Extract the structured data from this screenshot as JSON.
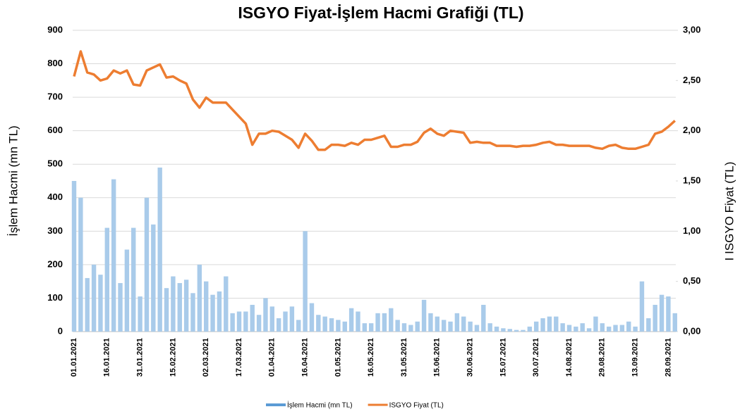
{
  "chart_data": {
    "type": "bar_line",
    "title": "ISGYO Fiyat-İşlem Hacmi Grafiği (TL)",
    "y_label": "İşlem Hacmi (mn TL)",
    "y2_label": "I ISGYO Fiyat (TL)",
    "categories": [
      "01.01.2021",
      null,
      null,
      null,
      null,
      "16.01.2021",
      null,
      null,
      null,
      null,
      "31.01.2021",
      null,
      null,
      null,
      null,
      "15.02.2021",
      null,
      null,
      null,
      null,
      "02.03.2021",
      null,
      null,
      null,
      null,
      "17.03.2021",
      null,
      null,
      null,
      null,
      "01.04.2021",
      null,
      null,
      null,
      null,
      "16.04.2021",
      null,
      null,
      null,
      null,
      "01.05.2021",
      null,
      null,
      null,
      null,
      "16.05.2021",
      null,
      null,
      null,
      null,
      "31.05.2021",
      null,
      null,
      null,
      null,
      "15.06.2021",
      null,
      null,
      null,
      null,
      "30.06.2021",
      null,
      null,
      null,
      null,
      "15.07.2021",
      null,
      null,
      null,
      null,
      "30.07.2021",
      null,
      null,
      null,
      null,
      "14.08.2021",
      null,
      null,
      null,
      null,
      "29.08.2021",
      null,
      null,
      null,
      null,
      "13.09.2021",
      null,
      null,
      null,
      null,
      "28.09.2021",
      null
    ],
    "series": [
      {
        "name": "İşlem Hacmi (mn TL)",
        "kind": "bar",
        "color": "#a9cbea",
        "legend_color": "#5b9bd5",
        "values": [
          450,
          400,
          160,
          200,
          170,
          310,
          455,
          145,
          245,
          310,
          105,
          400,
          320,
          490,
          130,
          165,
          145,
          155,
          115,
          200,
          150,
          110,
          120,
          165,
          55,
          60,
          60,
          80,
          50,
          100,
          75,
          40,
          60,
          75,
          35,
          300,
          85,
          50,
          45,
          40,
          35,
          30,
          70,
          60,
          25,
          25,
          55,
          55,
          70,
          35,
          25,
          20,
          30,
          95,
          55,
          45,
          35,
          30,
          55,
          45,
          30,
          20,
          80,
          25,
          15,
          10,
          8,
          5,
          5,
          15,
          30,
          40,
          45,
          45,
          25,
          20,
          15,
          25,
          10,
          45,
          25,
          15,
          20,
          20,
          30,
          15,
          150,
          40,
          80,
          110,
          105,
          55
        ]
      },
      {
        "name": "ISGYO Fiyat (TL)",
        "kind": "line",
        "axis": "y2",
        "color": "#ed7d31",
        "values": [
          2.54,
          2.79,
          2.58,
          2.56,
          2.5,
          2.52,
          2.6,
          2.57,
          2.6,
          2.46,
          2.45,
          2.6,
          2.63,
          2.66,
          2.53,
          2.54,
          2.5,
          2.47,
          2.31,
          2.23,
          2.33,
          2.28,
          2.28,
          2.28,
          2.21,
          2.14,
          2.07,
          1.86,
          1.97,
          1.97,
          2.0,
          1.99,
          1.95,
          1.91,
          1.83,
          1.97,
          1.9,
          1.81,
          1.81,
          1.86,
          1.86,
          1.85,
          1.88,
          1.86,
          1.91,
          1.91,
          1.93,
          1.95,
          1.84,
          1.84,
          1.86,
          1.86,
          1.89,
          1.98,
          2.02,
          1.97,
          1.95,
          2.0,
          1.99,
          1.98,
          1.88,
          1.89,
          1.88,
          1.88,
          1.85,
          1.85,
          1.85,
          1.84,
          1.85,
          1.85,
          1.86,
          1.88,
          1.89,
          1.86,
          1.86,
          1.85,
          1.85,
          1.85,
          1.85,
          1.83,
          1.82,
          1.85,
          1.86,
          1.83,
          1.82,
          1.82,
          1.84,
          1.86,
          1.97,
          1.99,
          2.04,
          2.1
        ]
      }
    ],
    "ylim": [
      0,
      900
    ],
    "yticks": [
      0,
      100,
      200,
      300,
      400,
      500,
      600,
      700,
      800,
      900
    ],
    "y2lim": [
      0,
      3
    ],
    "y2ticks": [
      {
        "value": 0,
        "label": "0,00"
      },
      {
        "value": 0.5,
        "label": "0,50"
      },
      {
        "value": 1,
        "label": "1,00"
      },
      {
        "value": 1.5,
        "label": "1,50"
      },
      {
        "value": 2,
        "label": "2,00"
      },
      {
        "value": 2.5,
        "label": "2,50"
      },
      {
        "value": 3,
        "label": "3,00"
      }
    ],
    "grid": true,
    "legend": "bottom"
  }
}
